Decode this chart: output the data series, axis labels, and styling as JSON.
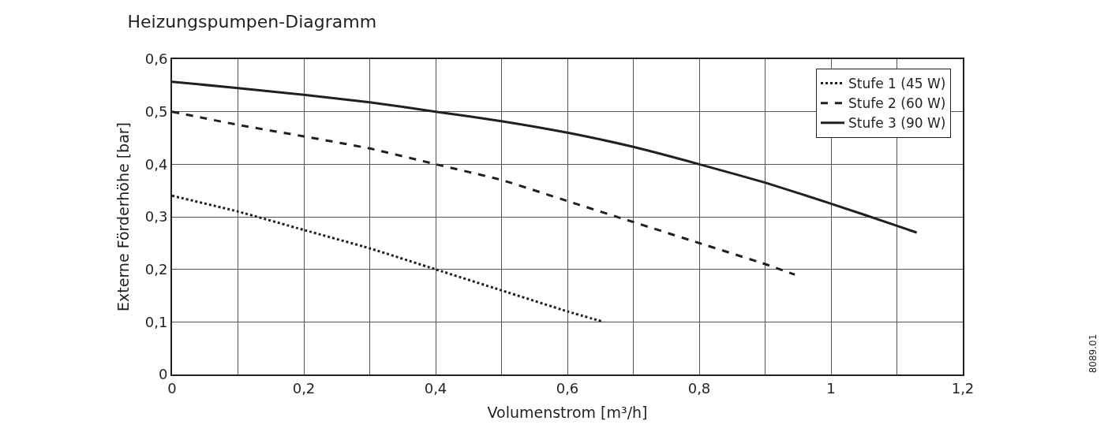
{
  "chart_data": {
    "type": "line",
    "title": "Heizungspumpen-Diagramm",
    "xlabel": "Volumenstrom [m³/h]",
    "ylabel": "Externe Förderhöhe [bar]",
    "annotations": [
      "8089.01"
    ],
    "xlim": [
      0,
      1.2
    ],
    "ylim": [
      0,
      0.6
    ],
    "xticks": [
      0,
      {
        "value": 0.1,
        "label": null
      },
      {
        "value": 0.2,
        "label": "0,2"
      },
      {
        "value": 0.3,
        "label": null
      },
      {
        "value": 0.4,
        "label": "0,4"
      },
      {
        "value": 0.5,
        "label": null
      },
      {
        "value": 0.6,
        "label": "0,6"
      },
      {
        "value": 0.7,
        "label": null
      },
      {
        "value": 0.8,
        "label": "0,8"
      },
      {
        "value": 0.9,
        "label": null
      },
      1,
      {
        "value": 1.1,
        "label": null
      },
      {
        "value": 1.2,
        "label": "1,2"
      }
    ],
    "yticks": [
      0,
      {
        "value": 0.1,
        "label": "0,1"
      },
      {
        "value": 0.2,
        "label": "0,2"
      },
      {
        "value": 0.3,
        "label": "0,3"
      },
      {
        "value": 0.4,
        "label": "0,4"
      },
      {
        "value": 0.5,
        "label": "0,5"
      },
      {
        "value": 0.6,
        "label": "0,6"
      }
    ],
    "grid": true,
    "legend": "top right",
    "marker": "none",
    "series": [
      {
        "name": "Stufe 1 (45 W)",
        "color": "#231f20",
        "line_style": "dotted",
        "x": [
          0,
          0.1,
          0.2,
          0.3,
          0.4,
          0.5,
          0.6,
          0.655
        ],
        "values": [
          0.34,
          0.31,
          0.275,
          0.24,
          0.2,
          0.16,
          0.12,
          0.1
        ]
      },
      {
        "name": "Stufe 2 (60 W)",
        "color": "#231f20",
        "line_style": "dashed",
        "x": [
          0,
          0.1,
          0.2,
          0.3,
          0.4,
          0.5,
          0.6,
          0.7,
          0.8,
          0.9,
          0.945
        ],
        "values": [
          0.5,
          0.475,
          0.453,
          0.43,
          0.4,
          0.37,
          0.33,
          0.29,
          0.25,
          0.21,
          0.19
        ]
      },
      {
        "name": "Stufe 3 (90 W)",
        "color": "#231f20",
        "line_style": "solid",
        "x": [
          0,
          0.1,
          0.2,
          0.3,
          0.4,
          0.5,
          0.6,
          0.7,
          0.8,
          0.9,
          1.0,
          1.1,
          1.13
        ],
        "values": [
          0.557,
          0.545,
          0.532,
          0.518,
          0.5,
          0.482,
          0.46,
          0.433,
          0.4,
          0.365,
          0.325,
          0.283,
          0.27
        ]
      }
    ]
  }
}
